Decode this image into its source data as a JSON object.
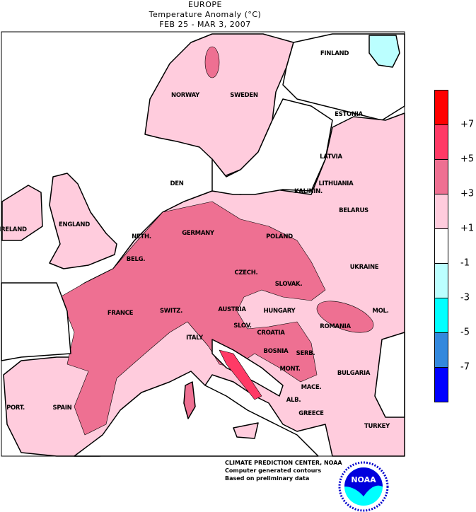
{
  "header": {
    "region": "EUROPE",
    "subtitle": "Temperature Anomaly (°C)",
    "period": "FEB 25 - MAR  3, 2007"
  },
  "map": {
    "labels": [
      "NORWAY",
      "SWEDEN",
      "FINLAND",
      "ESTONIA",
      "LATVIA",
      "LITHUANIA",
      "KALININ.",
      "BELARUS",
      "DEN",
      "IRELAND",
      "ENGLAND",
      "NETH.",
      "BELG.",
      "GERMANY",
      "POLAND",
      "CZECH.",
      "SLOVAK.",
      "UKRAINE",
      "MOL.",
      "AUSTRIA",
      "HUNGARY",
      "ROMANIA",
      "FRANCE",
      "SWITZ.",
      "SLOV.",
      "CROATIA",
      "BOSNIA",
      "SERB.",
      "MONT.",
      "ITALY",
      "BULGARIA",
      "MACE.",
      "ALB.",
      "GREECE",
      "TURKEY",
      "PORT.",
      "SPAIN"
    ]
  },
  "legend": {
    "colors": [
      "#ff0000",
      "#ff3a66",
      "#ee7092",
      "#ffccdd",
      "#ffffff",
      "#bbffff",
      "#00ffff",
      "#3388dd",
      "#0000ff"
    ],
    "ticks": [
      "+7",
      "+5",
      "+3",
      "+1",
      "-1",
      "-3",
      "-5",
      "-7"
    ]
  },
  "credits": {
    "line1": "CLIMATE PREDICTION CENTER, NOAA",
    "line2": "Computer generated contours",
    "line3": "Based on preliminary data",
    "logo_text": "NOAA"
  }
}
